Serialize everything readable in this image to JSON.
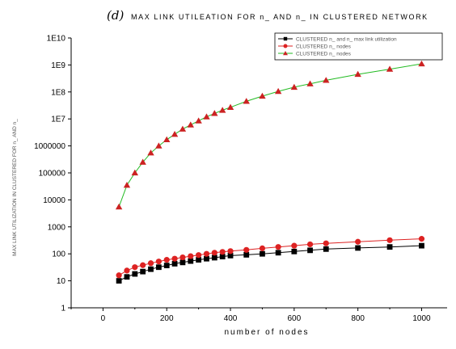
{
  "chart_data": {
    "type": "line",
    "panel_label": "(d)",
    "title": "MAX LINK UTILEATION FOR n_ AND n_ IN CLUSTERED NETWORK",
    "xlabel": "number of nodes",
    "ylabel": "MAX LINK UTILIZATION IN CLUSTERED FOR n_ AND n_",
    "xlim": [
      -100,
      1080
    ],
    "ylim": [
      1,
      10000000000
    ],
    "y_scale": "log",
    "x_ticks": [
      0,
      200,
      400,
      600,
      800,
      1000
    ],
    "y_ticks": [
      1,
      10,
      100,
      1000,
      10000,
      100000,
      1000000,
      10000000,
      100000000,
      1000000000,
      10000000000
    ],
    "x_tick_labels": [
      "0",
      "200",
      "400",
      "600",
      "800",
      "1000"
    ],
    "y_tick_labels": [
      "1",
      "10",
      "100",
      "1000",
      "10000",
      "100000",
      "1000000",
      "1E7",
      "1E8",
      "1E9",
      "1E10"
    ],
    "grid": false,
    "legend_position": "top-right",
    "series": [
      {
        "name": "CLUSTERED n_ and n_ max link utilization",
        "color": "#000000",
        "line_color": "#000000",
        "marker": "square",
        "x": [
          50,
          75,
          100,
          125,
          150,
          175,
          200,
          225,
          250,
          275,
          300,
          325,
          350,
          375,
          400,
          450,
          500,
          550,
          600,
          650,
          700,
          800,
          900,
          1000
        ],
        "y": [
          10,
          14,
          18,
          22,
          27,
          32,
          37,
          43,
          48,
          54,
          60,
          66,
          72,
          79,
          86,
          92,
          100,
          110,
          122,
          135,
          150,
          165,
          180,
          200
        ]
      },
      {
        "name": "CLUSTERED n_ nodes",
        "color": "#dd2222",
        "line_color": "#dd2222",
        "marker": "circle",
        "x": [
          50,
          75,
          100,
          125,
          150,
          175,
          200,
          225,
          250,
          275,
          300,
          325,
          350,
          375,
          400,
          450,
          500,
          550,
          600,
          650,
          700,
          800,
          900,
          1000
        ],
        "y": [
          16,
          24,
          32,
          38,
          45,
          52,
          60,
          66,
          74,
          82,
          90,
          100,
          110,
          118,
          126,
          140,
          160,
          180,
          200,
          225,
          245,
          280,
          320,
          360
        ]
      },
      {
        "name": "CLUSTERED n_ nodes",
        "color": "#cc2222",
        "line_color": "#22bb22",
        "marker": "triangle",
        "x": [
          50,
          75,
          100,
          125,
          150,
          175,
          200,
          225,
          250,
          275,
          300,
          325,
          350,
          375,
          400,
          450,
          500,
          550,
          600,
          650,
          700,
          800,
          900,
          1000
        ],
        "y": [
          5500,
          35000,
          100000,
          250000,
          550000,
          1000000,
          1700000,
          2700000,
          4200000,
          6000000,
          8500000,
          12000000,
          16000000,
          21000000,
          27000000,
          45000000,
          70000000,
          105000000,
          150000000,
          200000000,
          270000000,
          450000000,
          700000000,
          1100000000
        ]
      }
    ]
  }
}
